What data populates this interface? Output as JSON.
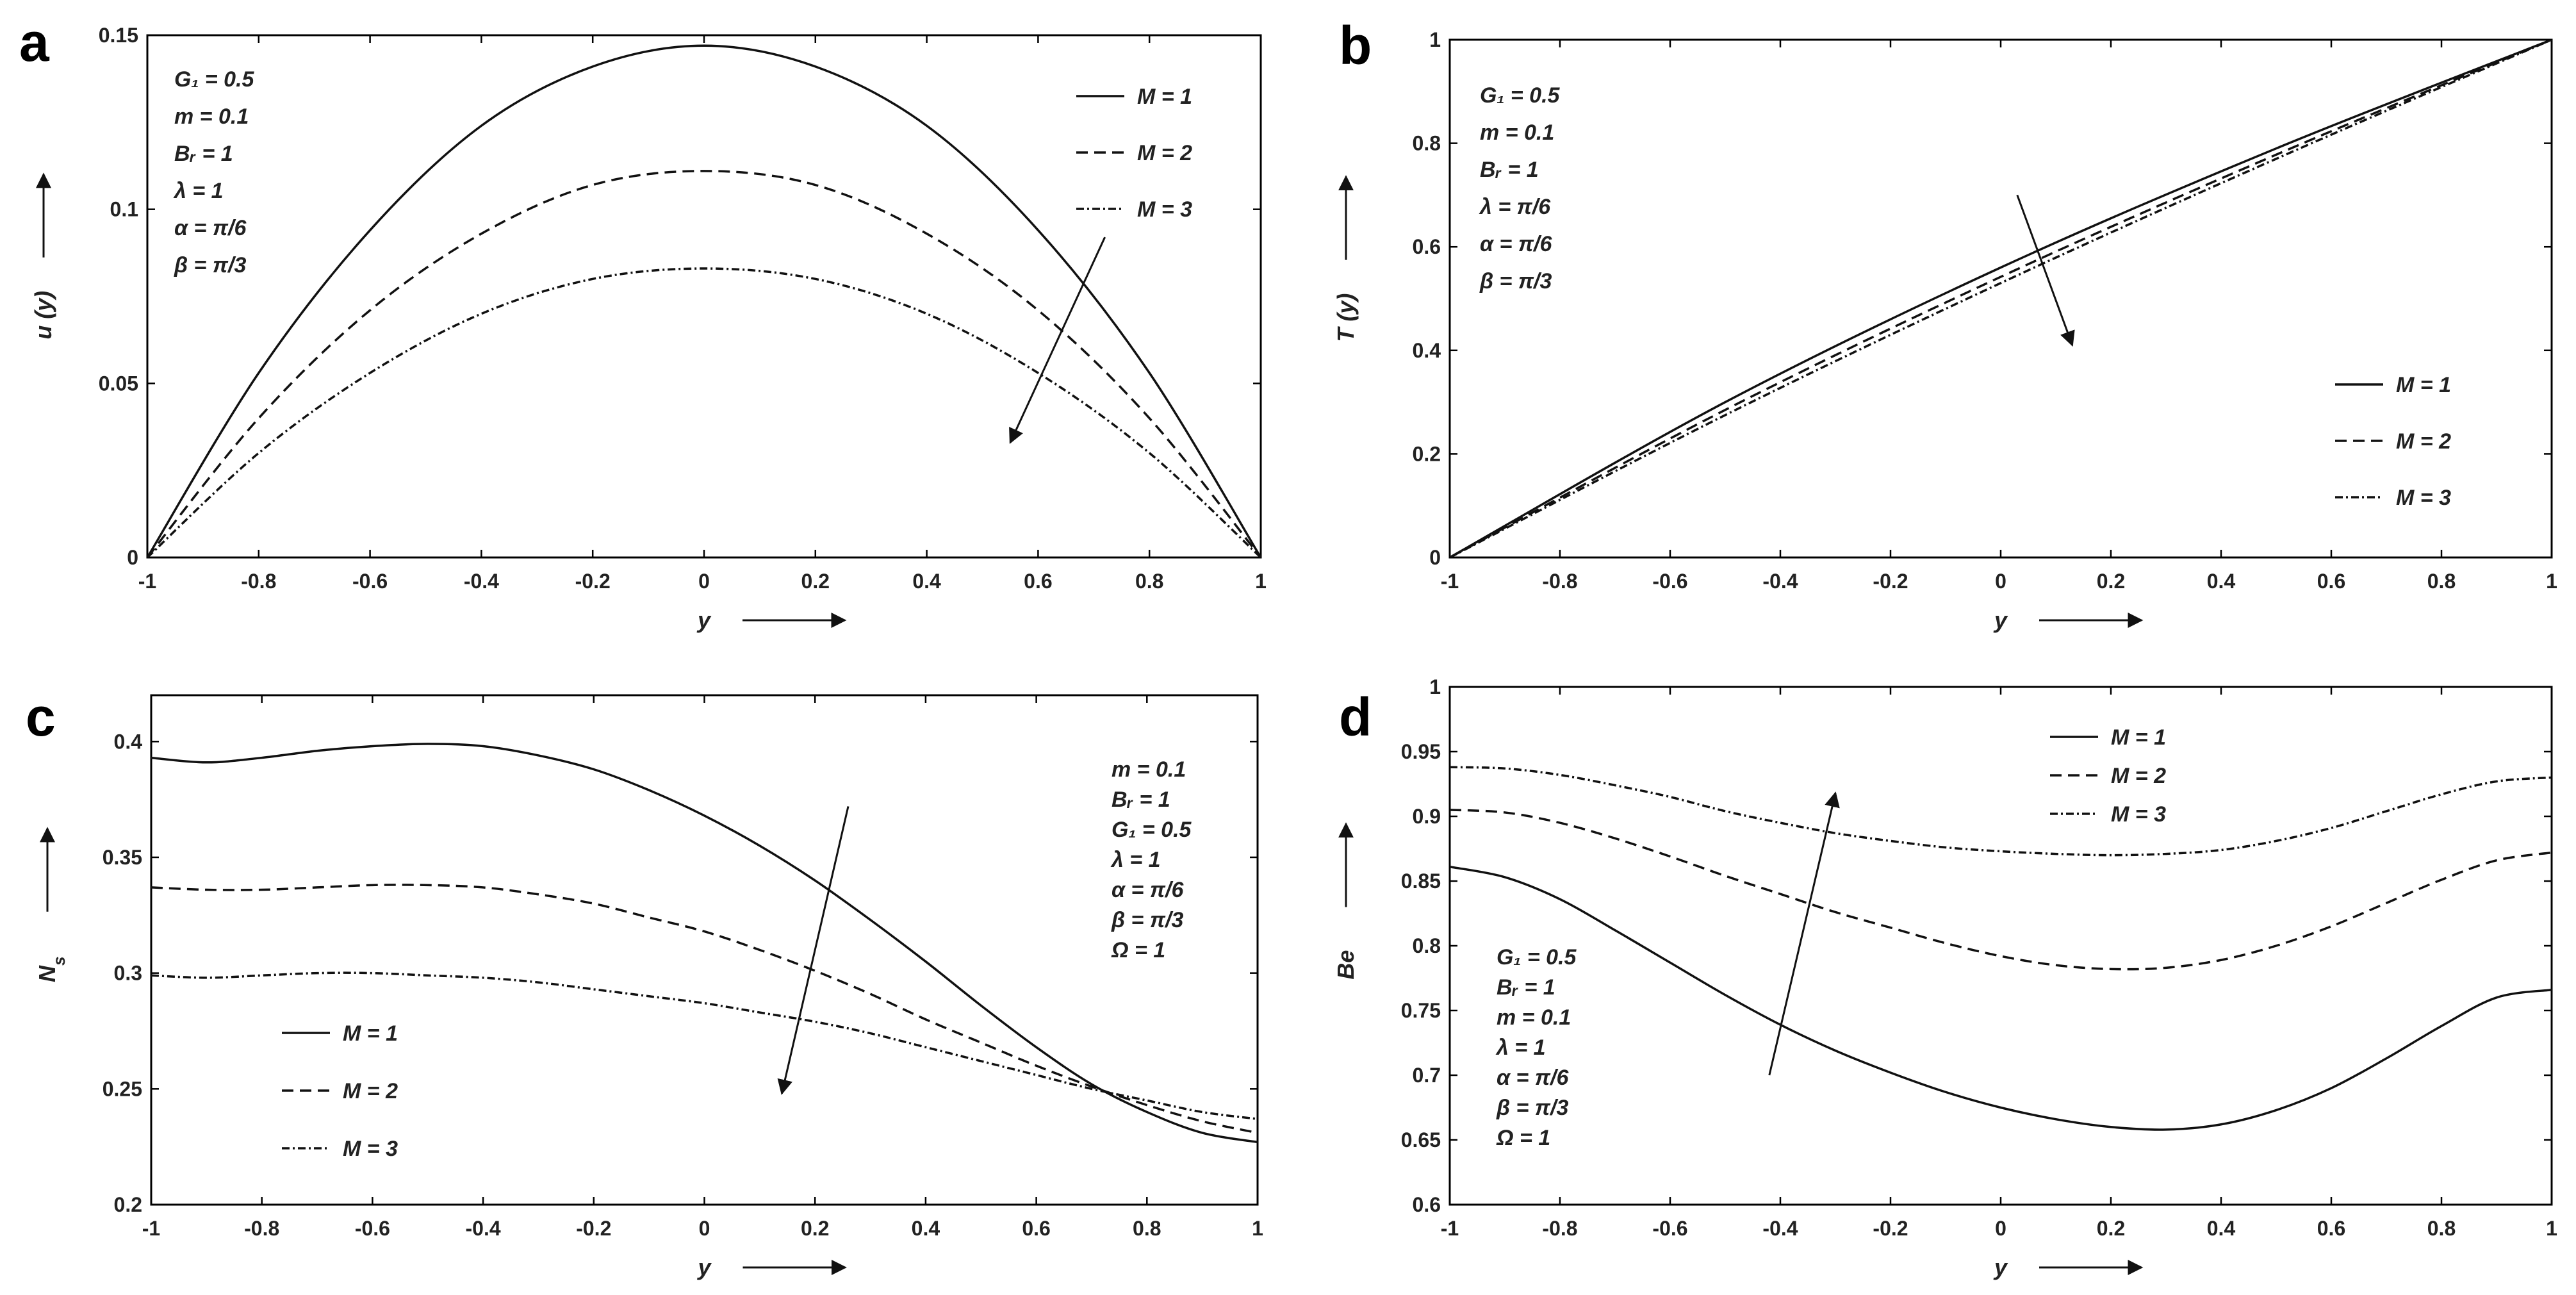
{
  "chart_data": [
    {
      "panel": "a",
      "type": "line",
      "xlabel": "y",
      "ylabel": "u (y)",
      "xlim": [
        -1,
        1
      ],
      "ylim": [
        0,
        0.15
      ],
      "xticks": [
        "-1",
        "-0.8",
        "-0.6",
        "-0.4",
        "-0.2",
        "0",
        "0.2",
        "0.4",
        "0.6",
        "0.8",
        "1"
      ],
      "yticks": [
        "0",
        "0.05",
        "0.1",
        "0.15"
      ],
      "annotations": [
        "G₁ = 0.5",
        "m = 0.1",
        "Bᵣ = 1",
        "λ = 1",
        "α = π/6",
        "β = π/3"
      ],
      "legend_position": "top-right",
      "series": [
        {
          "name": "M = 1",
          "style": "solid",
          "x": [
            -1,
            -0.8,
            -0.6,
            -0.4,
            -0.2,
            0,
            0.2,
            0.4,
            0.6,
            0.8,
            1
          ],
          "y": [
            0,
            0.053,
            0.094,
            0.124,
            0.141,
            0.147,
            0.141,
            0.124,
            0.094,
            0.053,
            0
          ]
        },
        {
          "name": "M = 2",
          "style": "dashed",
          "x": [
            -1,
            -0.8,
            -0.6,
            -0.4,
            -0.2,
            0,
            0.2,
            0.4,
            0.6,
            0.8,
            1
          ],
          "y": [
            0,
            0.04,
            0.071,
            0.093,
            0.107,
            0.111,
            0.107,
            0.093,
            0.071,
            0.04,
            0
          ]
        },
        {
          "name": "M = 3",
          "style": "dashdot",
          "x": [
            -1,
            -0.8,
            -0.6,
            -0.4,
            -0.2,
            0,
            0.2,
            0.4,
            0.6,
            0.8,
            1
          ],
          "y": [
            0,
            0.03,
            0.053,
            0.07,
            0.08,
            0.083,
            0.08,
            0.07,
            0.053,
            0.03,
            0
          ]
        }
      ],
      "arrow": {
        "from": [
          0.72,
          0.092
        ],
        "to": [
          0.55,
          0.033
        ]
      }
    },
    {
      "panel": "b",
      "type": "line",
      "xlabel": "y",
      "ylabel": "T (y)",
      "xlim": [
        -1,
        1
      ],
      "ylim": [
        0,
        1
      ],
      "xticks": [
        "-1",
        "-0.8",
        "-0.6",
        "-0.4",
        "-0.2",
        "0",
        "0.2",
        "0.4",
        "0.6",
        "0.8",
        "1"
      ],
      "yticks": [
        "0",
        "0.2",
        "0.4",
        "0.6",
        "0.8",
        "1"
      ],
      "annotations": [
        "G₁ = 0.5",
        "m = 0.1",
        "Bᵣ = 1",
        "λ = π/6",
        "α = π/6",
        "β = π/3"
      ],
      "legend_position": "bottom-right",
      "series": [
        {
          "name": "M = 1",
          "style": "solid",
          "x": [
            -1,
            -0.5,
            0,
            0.5,
            1
          ],
          "y": [
            0,
            0.3,
            0.56,
            0.79,
            1
          ]
        },
        {
          "name": "M = 2",
          "style": "dashed",
          "x": [
            -1,
            -0.5,
            0,
            0.5,
            1
          ],
          "y": [
            0,
            0.285,
            0.542,
            0.778,
            1
          ]
        },
        {
          "name": "M = 3",
          "style": "dashdot",
          "x": [
            -1,
            -0.5,
            0,
            0.5,
            1
          ],
          "y": [
            0,
            0.275,
            0.53,
            0.77,
            1
          ]
        }
      ],
      "arrow": {
        "from": [
          0.03,
          0.7
        ],
        "to": [
          0.13,
          0.41
        ]
      }
    },
    {
      "panel": "c",
      "type": "line",
      "xlabel": "y",
      "ylabel": "N_s",
      "xlim": [
        -1,
        1
      ],
      "ylim": [
        0.2,
        0.42
      ],
      "xticks": [
        "-1",
        "-0.8",
        "-0.6",
        "-0.4",
        "-0.2",
        "0",
        "0.2",
        "0.4",
        "0.6",
        "0.8",
        "1"
      ],
      "yticks": [
        "0.2",
        "0.25",
        "0.3",
        "0.35",
        "0.4"
      ],
      "annotations": [
        "m = 0.1",
        "Bᵣ = 1",
        "G₁ = 0.5",
        "λ = 1",
        "α = π/6",
        "β = π/3",
        "Ω = 1"
      ],
      "legend_position": "bottom-left",
      "series": [
        {
          "name": "M = 1",
          "style": "solid",
          "x": [
            -1,
            -0.9,
            -0.8,
            -0.7,
            -0.6,
            -0.5,
            -0.4,
            -0.3,
            -0.2,
            -0.1,
            0,
            0.1,
            0.2,
            0.3,
            0.4,
            0.5,
            0.6,
            0.7,
            0.8,
            0.9,
            1
          ],
          "y": [
            0.393,
            0.391,
            0.393,
            0.396,
            0.398,
            0.399,
            0.398,
            0.394,
            0.388,
            0.379,
            0.368,
            0.355,
            0.34,
            0.323,
            0.305,
            0.286,
            0.268,
            0.252,
            0.24,
            0.231,
            0.227
          ]
        },
        {
          "name": "M = 2",
          "style": "dashed",
          "x": [
            -1,
            -0.9,
            -0.8,
            -0.7,
            -0.6,
            -0.5,
            -0.4,
            -0.3,
            -0.2,
            -0.1,
            0,
            0.1,
            0.2,
            0.3,
            0.4,
            0.5,
            0.6,
            0.7,
            0.8,
            0.9,
            1
          ],
          "y": [
            0.337,
            0.336,
            0.336,
            0.337,
            0.338,
            0.338,
            0.337,
            0.334,
            0.33,
            0.324,
            0.318,
            0.31,
            0.301,
            0.291,
            0.28,
            0.27,
            0.26,
            0.251,
            0.243,
            0.236,
            0.231
          ]
        },
        {
          "name": "M = 3",
          "style": "dashdot",
          "x": [
            -1,
            -0.9,
            -0.8,
            -0.7,
            -0.6,
            -0.5,
            -0.4,
            -0.3,
            -0.2,
            -0.1,
            0,
            0.1,
            0.2,
            0.3,
            0.4,
            0.5,
            0.6,
            0.7,
            0.8,
            0.9,
            1
          ],
          "y": [
            0.299,
            0.298,
            0.299,
            0.3,
            0.3,
            0.299,
            0.298,
            0.296,
            0.293,
            0.29,
            0.287,
            0.283,
            0.279,
            0.274,
            0.268,
            0.262,
            0.256,
            0.25,
            0.245,
            0.24,
            0.237
          ]
        }
      ],
      "arrow": {
        "from": [
          0.26,
          0.372
        ],
        "to": [
          0.14,
          0.248
        ]
      }
    },
    {
      "panel": "d",
      "type": "line",
      "xlabel": "y",
      "ylabel": "Be",
      "xlim": [
        -1,
        1
      ],
      "ylim": [
        0.6,
        1
      ],
      "xticks": [
        "-1",
        "-0.8",
        "-0.6",
        "-0.4",
        "-0.2",
        "0",
        "0.2",
        "0.4",
        "0.6",
        "0.8",
        "1"
      ],
      "yticks": [
        "0.6",
        "0.65",
        "0.7",
        "0.75",
        "0.8",
        "0.85",
        "0.9",
        "0.95",
        "1"
      ],
      "annotations": [
        "G₁ = 0.5",
        "Bᵣ = 1",
        "m = 0.1",
        "λ = 1",
        "α = π/6",
        "β = π/3",
        "Ω = 1"
      ],
      "legend_position": "top-center",
      "series": [
        {
          "name": "M = 1",
          "style": "solid",
          "x": [
            -1,
            -0.9,
            -0.8,
            -0.7,
            -0.6,
            -0.5,
            -0.4,
            -0.3,
            -0.2,
            -0.1,
            0,
            0.1,
            0.2,
            0.3,
            0.4,
            0.5,
            0.6,
            0.7,
            0.8,
            0.9,
            1
          ],
          "y": [
            0.861,
            0.853,
            0.836,
            0.812,
            0.787,
            0.762,
            0.739,
            0.719,
            0.702,
            0.687,
            0.675,
            0.666,
            0.66,
            0.658,
            0.662,
            0.673,
            0.69,
            0.713,
            0.738,
            0.76,
            0.766
          ]
        },
        {
          "name": "M = 2",
          "style": "dashed",
          "x": [
            -1,
            -0.9,
            -0.8,
            -0.7,
            -0.6,
            -0.5,
            -0.4,
            -0.3,
            -0.2,
            -0.1,
            0,
            0.1,
            0.2,
            0.3,
            0.4,
            0.5,
            0.6,
            0.7,
            0.8,
            0.9,
            1
          ],
          "y": [
            0.905,
            0.903,
            0.895,
            0.883,
            0.869,
            0.854,
            0.84,
            0.826,
            0.814,
            0.802,
            0.792,
            0.785,
            0.782,
            0.783,
            0.789,
            0.8,
            0.815,
            0.833,
            0.851,
            0.866,
            0.872
          ]
        },
        {
          "name": "M = 3",
          "style": "dashdot",
          "x": [
            -1,
            -0.9,
            -0.8,
            -0.7,
            -0.6,
            -0.5,
            -0.4,
            -0.3,
            -0.2,
            -0.1,
            0,
            0.1,
            0.2,
            0.3,
            0.4,
            0.5,
            0.6,
            0.7,
            0.8,
            0.9,
            1
          ],
          "y": [
            0.938,
            0.937,
            0.932,
            0.924,
            0.915,
            0.904,
            0.895,
            0.887,
            0.881,
            0.876,
            0.873,
            0.871,
            0.87,
            0.871,
            0.874,
            0.881,
            0.891,
            0.904,
            0.917,
            0.927,
            0.93
          ]
        }
      ],
      "arrow": {
        "from": [
          -0.42,
          0.7
        ],
        "to": [
          -0.3,
          0.918
        ]
      }
    }
  ]
}
